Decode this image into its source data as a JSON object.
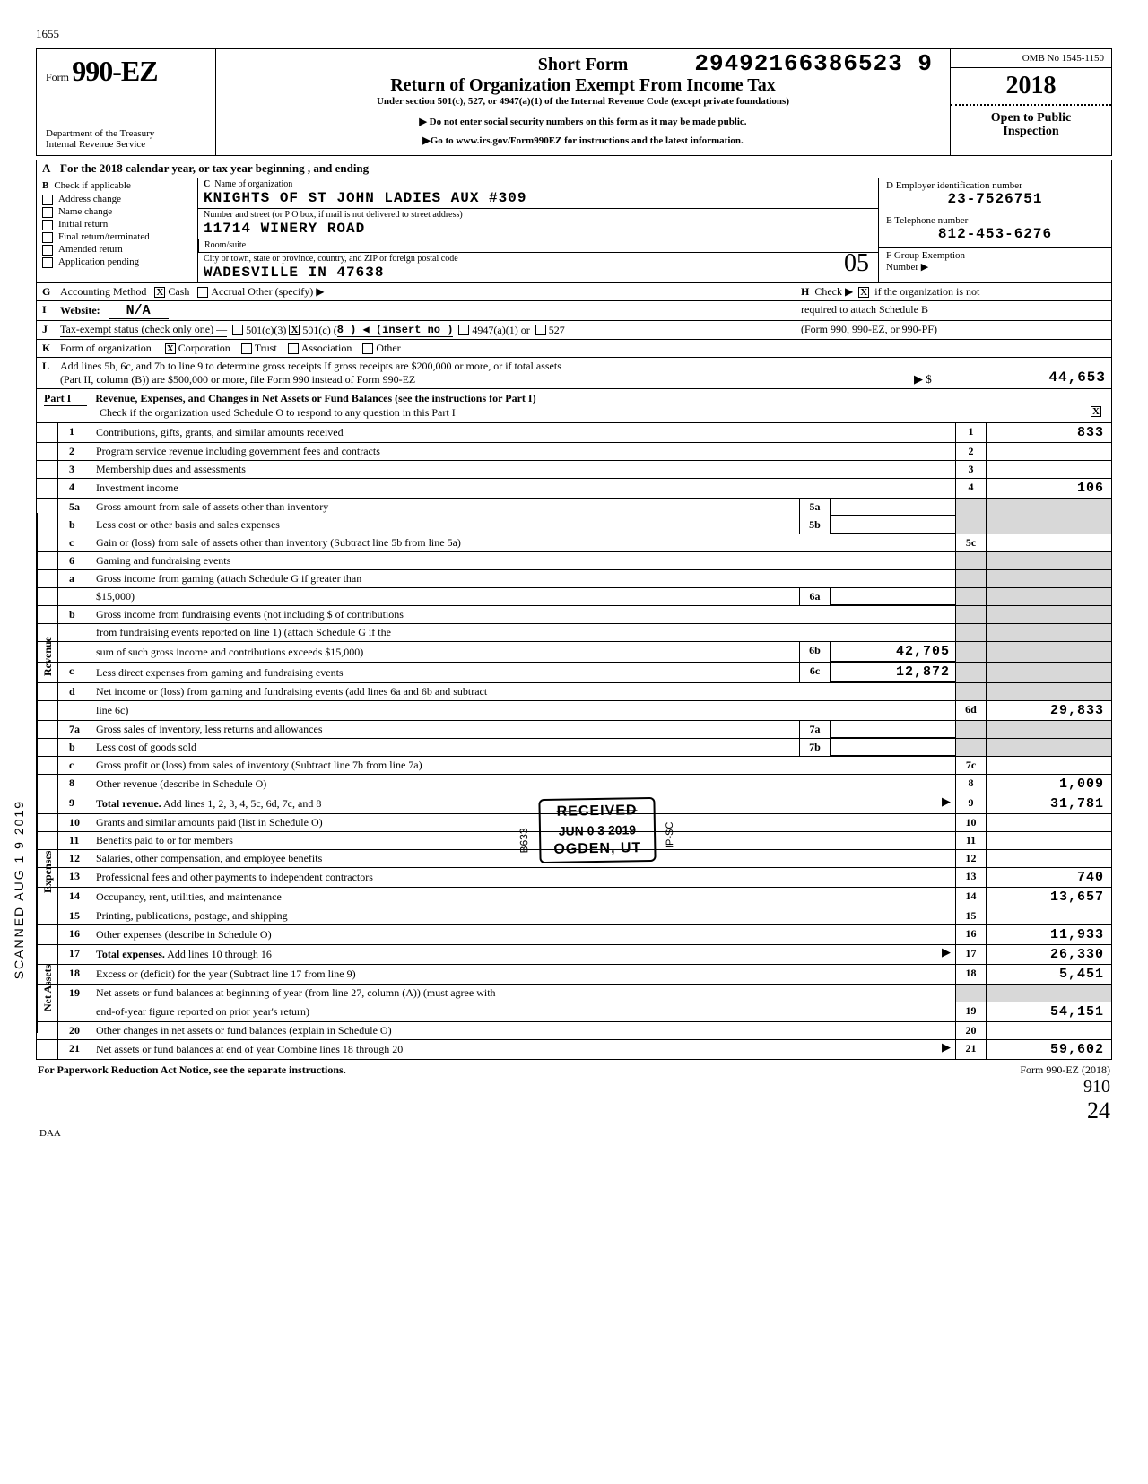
{
  "page_num_top": "1655",
  "dln": "29492166386523  9",
  "omb": "OMB No 1545-1150",
  "form_label": "Form",
  "form_num": "990-EZ",
  "year": "2018",
  "dept1": "Department of the Treasury",
  "dept2": "Internal Revenue Service",
  "title_short": "Short Form",
  "title_main": "Return of Organization Exempt From Income Tax",
  "title_sub": "Under section 501(c), 527, or 4947(a)(1) of the Internal Revenue Code (except private foundations)",
  "title_note1": "▶ Do not enter social security numbers on this form as it may be made public.",
  "title_note2": "▶Go to www.irs.gov/Form990EZ for instructions and the latest information.",
  "open1": "Open to Public",
  "open2": "Inspection",
  "lineA": "For the 2018 calendar year, or tax year beginning                            , and ending",
  "B": {
    "label": "Check if applicable",
    "items": [
      "Address change",
      "Name change",
      "Initial return",
      "Final return/terminated",
      "Amended return",
      "Application pending"
    ]
  },
  "C": {
    "label_name": "Name of organization",
    "name": "KNIGHTS OF ST JOHN LADIES AUX #309",
    "label_addr": "Number and street (or P O  box, if mail is not delivered to street address)",
    "addr": "11714 WINERY ROAD",
    "room_label": "Room/suite",
    "label_city": "City or town, state or province, country, and ZIP or foreign postal code",
    "city": "WADESVILLE                  IN 47638"
  },
  "D": {
    "label": "D  Employer identification number",
    "val": "23-7526751"
  },
  "E": {
    "label": "E  Telephone number",
    "val": "812-453-6276"
  },
  "F": {
    "label": "F  Group Exemption",
    "label2": "Number  ▶"
  },
  "G": "Accounting Method",
  "G_cash": "Cash",
  "G_accrual": "Accrual   Other (specify) ▶",
  "H": "Check ▶",
  "H_after": "if the organization is not",
  "H_line2": "required to attach Schedule B",
  "H_line3": "(Form 990, 990-EZ, or 990-PF)",
  "I": "Website:",
  "I_val": "N/A",
  "J": "Tax-exempt status (check only one) —",
  "J_opts": [
    "501(c)(3)",
    "501(c) (",
    "8  ) ◀ (insert no )",
    "4947(a)(1) or",
    "527"
  ],
  "K": "Form of organization",
  "K_opts": [
    "Corporation",
    "Trust",
    "Association",
    "Other"
  ],
  "L1": "Add lines 5b, 6c, and 7b to line 9 to determine gross receipts  If gross receipts are $200,000 or more, or if total assets",
  "L2": "(Part II, column (B)) are $500,000 or more, file Form 990 instead of Form 990-EZ",
  "L_amt": "44,653",
  "part1_label": "Part I",
  "part1_title": "Revenue, Expenses, and Changes in Net Assets or Fund Balances (see the instructions for Part I)",
  "part1_sub": "Check if the organization used Schedule O to respond to any question in this Part I",
  "sideA": "Revenue",
  "sideB": "Expenses",
  "sideC": "Net Assets",
  "scanned": "SCANNED AUG 1 9 2019",
  "rows": [
    {
      "n": "1",
      "d": "Contributions, gifts, grants, and similar amounts received",
      "en": "1",
      "ev": "833"
    },
    {
      "n": "2",
      "d": "Program service revenue including government fees and contracts",
      "en": "2",
      "ev": ""
    },
    {
      "n": "3",
      "d": "Membership dues and assessments",
      "en": "3",
      "ev": ""
    },
    {
      "n": "4",
      "d": "Investment income",
      "en": "4",
      "ev": "106"
    },
    {
      "n": "5a",
      "d": "Gross amount from sale of assets other than inventory",
      "mn": "5a",
      "mv": "",
      "shadeend": true
    },
    {
      "n": "b",
      "d": "Less  cost or other basis and sales expenses",
      "mn": "5b",
      "mv": "",
      "shadeend": true
    },
    {
      "n": "c",
      "d": "Gain or (loss) from sale of assets other than inventory (Subtract line 5b from line 5a)",
      "en": "5c",
      "ev": ""
    },
    {
      "n": "6",
      "d": "Gaming and fundraising events",
      "shadeend": true,
      "noen": true
    },
    {
      "n": "a",
      "d": "Gross income from gaming (attach Schedule G if greater than",
      "shadeend": true,
      "noen": true
    },
    {
      "n": "",
      "d": "$15,000)",
      "mn": "6a",
      "mv": "",
      "shadeend": true
    },
    {
      "n": "b",
      "d": "Gross income from fundraising events (not including $                              of contributions",
      "shadeend": true,
      "noen": true
    },
    {
      "n": "",
      "d": "from fundraising events reported on line 1) (attach Schedule G if the",
      "shadeend": true,
      "noen": true
    },
    {
      "n": "",
      "d": "sum of such gross income and contributions exceeds $15,000)",
      "mn": "6b",
      "mv": "42,705",
      "shadeend": true
    },
    {
      "n": "c",
      "d": "Less  direct expenses from gaming and fundraising events",
      "mn": "6c",
      "mv": "12,872",
      "shadeend": true
    },
    {
      "n": "d",
      "d": "Net income or (loss) from gaming and fundraising events (add lines 6a and 6b and subtract",
      "shadeend": true,
      "noen": true
    },
    {
      "n": "",
      "d": "line 6c)",
      "en": "6d",
      "ev": "29,833"
    },
    {
      "n": "7a",
      "d": "Gross sales of inventory, less returns and allowances",
      "mn": "7a",
      "mv": "",
      "shadeend": true
    },
    {
      "n": "b",
      "d": "Less  cost of goods sold",
      "mn": "7b",
      "mv": "",
      "shadeend": true
    },
    {
      "n": "c",
      "d": "Gross profit or (loss) from sales of inventory (Subtract line 7b from line 7a)",
      "en": "7c",
      "ev": ""
    },
    {
      "n": "8",
      "d": "Other revenue (describe in Schedule O)",
      "en": "8",
      "ev": "1,009"
    },
    {
      "n": "9",
      "d": "Total revenue. Add lines 1, 2, 3, 4, 5c, 6d, 7c, and 8",
      "en": "9",
      "ev": "31,781",
      "arrow": true,
      "bold": true
    },
    {
      "n": "10",
      "d": "Grants and similar amounts paid (list in Schedule O)",
      "en": "10",
      "ev": ""
    },
    {
      "n": "11",
      "d": "Benefits paid to or for members",
      "en": "11",
      "ev": ""
    },
    {
      "n": "12",
      "d": "Salaries, other compensation, and employee benefits",
      "en": "12",
      "ev": ""
    },
    {
      "n": "13",
      "d": "Professional fees and other payments to independent contractors",
      "en": "13",
      "ev": "740"
    },
    {
      "n": "14",
      "d": "Occupancy, rent, utilities, and maintenance",
      "en": "14",
      "ev": "13,657"
    },
    {
      "n": "15",
      "d": "Printing, publications, postage, and shipping",
      "en": "15",
      "ev": ""
    },
    {
      "n": "16",
      "d": "Other expenses (describe in Schedule O)",
      "en": "16",
      "ev": "11,933"
    },
    {
      "n": "17",
      "d": "Total expenses. Add lines 10 through 16",
      "en": "17",
      "ev": "26,330",
      "arrow": true,
      "bold": true
    },
    {
      "n": "18",
      "d": "Excess or (deficit) for the year (Subtract line 17 from line 9)",
      "en": "18",
      "ev": "5,451"
    },
    {
      "n": "19",
      "d": "Net assets or fund balances at beginning of year (from line 27, column (A)) (must agree with",
      "noen": true,
      "shadeend": true
    },
    {
      "n": "",
      "d": "end-of-year figure reported on prior year's return)",
      "en": "19",
      "ev": "54,151"
    },
    {
      "n": "20",
      "d": "Other changes in net assets or fund balances (explain in Schedule O)",
      "en": "20",
      "ev": ""
    },
    {
      "n": "21",
      "d": "Net assets or fund balances at end of year  Combine lines 18 through 20",
      "en": "21",
      "ev": "59,602",
      "arrow": true
    }
  ],
  "footer_left": "For Paperwork Reduction Act Notice, see the separate instructions.",
  "footer_right": "Form 990-EZ (2018)",
  "daa": "DAA",
  "stamp": {
    "r1": "RECEIVED",
    "r2": "JUN 0 3 2019",
    "r3": "OGDEN, UT",
    "b633": "B633",
    "ipsc": "IP-SC"
  },
  "hw_05": "05",
  "hw_910": "910",
  "hw_24": "24"
}
